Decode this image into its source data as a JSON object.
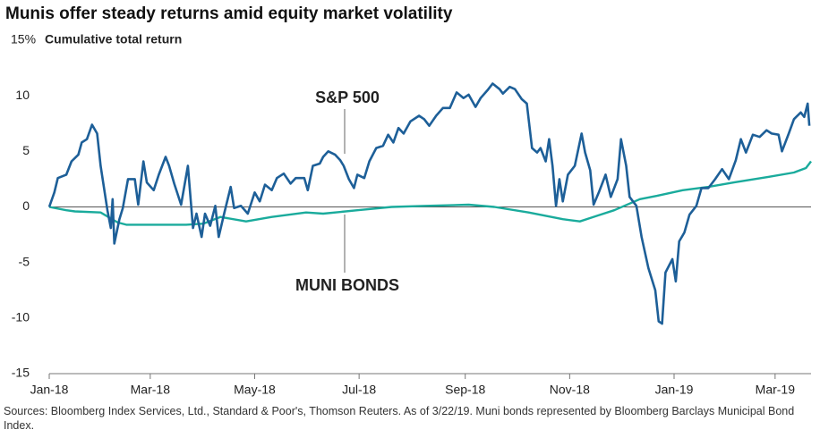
{
  "chart_data": {
    "type": "line",
    "title": "Munis offer steady returns amid equity market volatility",
    "ylabel": "Cumulative total return",
    "source": "Sources: Bloomberg Index Services, Ltd., Standard & Poor's, Thomson Reuters. As of 3/22/19. Muni bonds represented by Bloomberg Barclays Municipal Bond Index.",
    "xlim": [
      0,
      445
    ],
    "xticks": [
      {
        "value": 0,
        "label": "Jan-18"
      },
      {
        "value": 59,
        "label": "Mar-18"
      },
      {
        "value": 120,
        "label": "May-18"
      },
      {
        "value": 181,
        "label": "Jul-18"
      },
      {
        "value": 243,
        "label": "Sep-18"
      },
      {
        "value": 304,
        "label": "Nov-18"
      },
      {
        "value": 365,
        "label": "Jan-19"
      },
      {
        "value": 424,
        "label": "Mar-19"
      }
    ],
    "ylim": [
      -15,
      15
    ],
    "yticks": [
      -15,
      -10,
      -5,
      0,
      5,
      10,
      {
        "value": 15,
        "label": "15%"
      }
    ],
    "grid": false,
    "series": [
      {
        "name": "S&P 500",
        "color": "#1d5f98",
        "x": [
          0,
          3,
          5,
          10,
          13,
          17,
          19,
          22,
          25,
          28,
          30,
          34,
          36,
          37,
          38,
          41,
          43,
          46,
          50,
          52,
          55,
          57,
          61,
          64,
          68,
          70,
          73,
          77,
          81,
          84,
          86,
          89,
          91,
          94,
          97,
          99,
          102,
          106,
          108,
          112,
          116,
          120,
          123,
          126,
          130,
          133,
          137,
          141,
          144,
          149,
          151,
          154,
          158,
          160,
          163,
          167,
          170,
          172,
          175,
          178,
          180,
          184,
          187,
          191,
          195,
          198,
          201,
          204,
          207,
          211,
          216,
          219,
          222,
          226,
          230,
          234,
          238,
          242,
          245,
          249,
          252,
          256,
          259,
          263,
          265,
          269,
          272,
          276,
          279,
          282,
          285,
          287,
          290,
          292,
          294,
          296,
          298,
          300,
          303,
          307,
          311,
          313,
          316,
          318,
          321,
          325,
          328,
          332,
          334,
          337,
          339,
          343,
          346,
          350,
          354,
          356,
          358,
          360,
          364,
          366,
          368,
          371,
          374,
          378,
          381,
          385,
          389,
          393,
          397,
          401,
          404,
          407,
          411,
          415,
          419,
          422,
          426,
          428,
          432,
          435,
          439,
          441,
          443,
          444
        ],
        "values": [
          0,
          1.3,
          2.6,
          2.9,
          4.1,
          4.7,
          5.8,
          6.1,
          7.4,
          6.6,
          3.7,
          -0.3,
          -1.9,
          0.7,
          -3.3,
          -1.1,
          -0.1,
          2.5,
          2.5,
          0.2,
          4.1,
          2.2,
          1.5,
          2.9,
          4.5,
          3.7,
          2.1,
          0.2,
          3.7,
          -1.9,
          -0.6,
          -2.7,
          -0.6,
          -1.7,
          0.1,
          -2.7,
          -0.7,
          1.8,
          -0.1,
          0.1,
          -0.6,
          1.3,
          0.5,
          2.0,
          1.5,
          2.6,
          3.0,
          2.1,
          2.6,
          2.6,
          1.5,
          3.7,
          3.9,
          4.5,
          5.0,
          4.7,
          4.2,
          3.7,
          2.5,
          1.7,
          2.9,
          2.6,
          4.1,
          5.3,
          5.5,
          6.5,
          5.8,
          7.1,
          6.6,
          7.7,
          8.2,
          7.9,
          7.3,
          8.2,
          8.9,
          8.9,
          10.3,
          9.8,
          10.1,
          9.0,
          9.8,
          10.5,
          11.1,
          10.6,
          10.2,
          10.8,
          10.6,
          9.7,
          9.3,
          5.3,
          4.9,
          5.3,
          4.1,
          6.1,
          3.7,
          0.1,
          2.5,
          0.5,
          2.9,
          3.7,
          6.6,
          4.9,
          3.3,
          0.2,
          1.3,
          2.9,
          0.9,
          2.5,
          6.1,
          3.7,
          0.9,
          0.1,
          -2.7,
          -5.5,
          -7.5,
          -10.3,
          -10.5,
          -5.9,
          -4.7,
          -6.7,
          -3.1,
          -2.3,
          -0.7,
          0.1,
          1.7,
          1.7,
          2.5,
          3.4,
          2.5,
          4.2,
          6.1,
          4.9,
          6.5,
          6.3,
          6.9,
          6.6,
          6.5,
          5.0,
          6.6,
          7.9,
          8.5,
          8.1,
          9.3,
          7.3
        ]
      },
      {
        "name": "MUNI BONDS",
        "color": "#1aab9c",
        "x": [
          0,
          10,
          15,
          30,
          40,
          45,
          60,
          80,
          90,
          100,
          115,
          130,
          150,
          160,
          180,
          200,
          220,
          245,
          260,
          280,
          300,
          310,
          320,
          330,
          345,
          355,
          370,
          385,
          400,
          420,
          435,
          442,
          445
        ],
        "values": [
          0,
          -0.3,
          -0.4,
          -0.5,
          -1.4,
          -1.6,
          -1.6,
          -1.6,
          -1.5,
          -0.9,
          -1.3,
          -0.9,
          -0.5,
          -0.6,
          -0.3,
          0,
          0.1,
          0.2,
          0,
          -0.5,
          -1.1,
          -1.3,
          -0.8,
          -0.3,
          0.7,
          1.0,
          1.5,
          1.8,
          2.2,
          2.7,
          3.1,
          3.5,
          4.1
        ]
      }
    ]
  }
}
